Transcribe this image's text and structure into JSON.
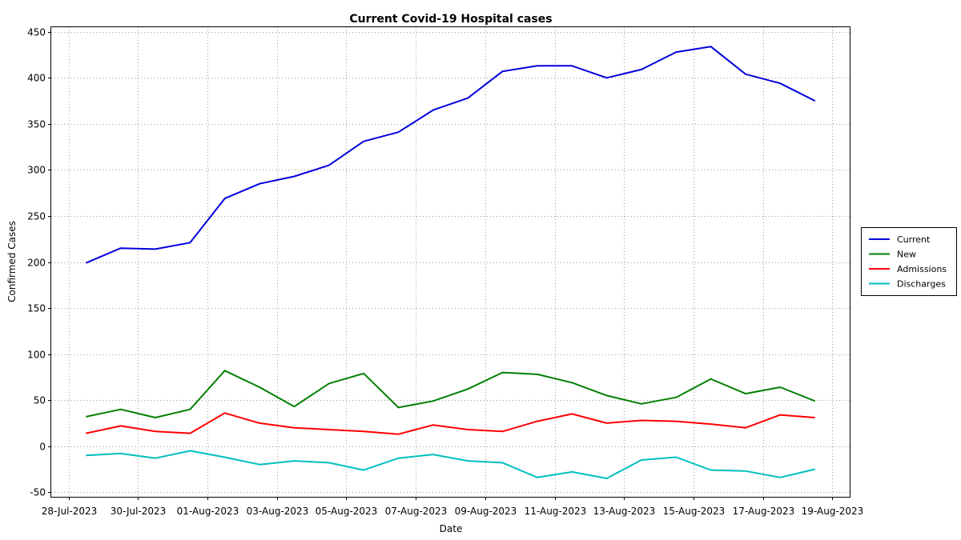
{
  "chart_data": {
    "type": "line",
    "title": "Current Covid-19 Hospital cases",
    "xlabel": "Date",
    "ylabel": "Confirmed Cases",
    "ylim": [
      -55,
      455
    ],
    "xlim": [
      "2023-07-27T12:00",
      "2023-08-19T12:00"
    ],
    "y_ticks": [
      -50,
      0,
      50,
      100,
      150,
      200,
      250,
      300,
      350,
      400,
      450
    ],
    "x_ticks": [
      {
        "date": "2023-07-28",
        "label": "28-Jul-2023"
      },
      {
        "date": "2023-07-30",
        "label": "30-Jul-2023"
      },
      {
        "date": "2023-08-01",
        "label": "01-Aug-2023"
      },
      {
        "date": "2023-08-03",
        "label": "03-Aug-2023"
      },
      {
        "date": "2023-08-05",
        "label": "05-Aug-2023"
      },
      {
        "date": "2023-08-07",
        "label": "07-Aug-2023"
      },
      {
        "date": "2023-08-09",
        "label": "09-Aug-2023"
      },
      {
        "date": "2023-08-11",
        "label": "11-Aug-2023"
      },
      {
        "date": "2023-08-13",
        "label": "13-Aug-2023"
      },
      {
        "date": "2023-08-15",
        "label": "15-Aug-2023"
      },
      {
        "date": "2023-08-17",
        "label": "17-Aug-2023"
      },
      {
        "date": "2023-08-19",
        "label": "19-Aug-2023"
      }
    ],
    "x": [
      "2023-07-28T12:00",
      "2023-07-29T12:00",
      "2023-07-30T12:00",
      "2023-07-31T12:00",
      "2023-08-01T12:00",
      "2023-08-02T12:00",
      "2023-08-03T12:00",
      "2023-08-04T12:00",
      "2023-08-05T12:00",
      "2023-08-06T12:00",
      "2023-08-07T12:00",
      "2023-08-08T12:00",
      "2023-08-09T12:00",
      "2023-08-10T12:00",
      "2023-08-11T12:00",
      "2023-08-12T12:00",
      "2023-08-13T12:00",
      "2023-08-14T12:00",
      "2023-08-15T12:00",
      "2023-08-16T12:00",
      "2023-08-17T12:00",
      "2023-08-18T12:00"
    ],
    "series": [
      {
        "name": "Current",
        "color": "#0000dd",
        "values": [
          199,
          215,
          214,
          221,
          269,
          285,
          293,
          305,
          331,
          341,
          365,
          378,
          407,
          413,
          413,
          400,
          409,
          428,
          434,
          404,
          394,
          375
        ]
      },
      {
        "name": "New",
        "color": "#008000",
        "values": [
          32,
          40,
          31,
          40,
          82,
          64,
          43,
          68,
          79,
          42,
          49,
          62,
          80,
          78,
          69,
          55,
          46,
          53,
          73,
          57,
          64,
          49
        ]
      },
      {
        "name": "Admissions",
        "color": "#ff0000",
        "values": [
          14,
          22,
          16,
          14,
          36,
          25,
          20,
          18,
          16,
          13,
          23,
          18,
          16,
          27,
          35,
          25,
          28,
          27,
          24,
          20,
          34,
          31
        ]
      },
      {
        "name": "Discharges",
        "color": "#00bfbf",
        "values": [
          -10,
          -8,
          -13,
          -5,
          -12,
          -20,
          -16,
          -18,
          -26,
          -13,
          -9,
          -16,
          -18,
          -34,
          -28,
          -35,
          -15,
          -12,
          -26,
          -27,
          -34,
          -25
        ]
      }
    ],
    "grid": true,
    "legend_position": "right"
  }
}
